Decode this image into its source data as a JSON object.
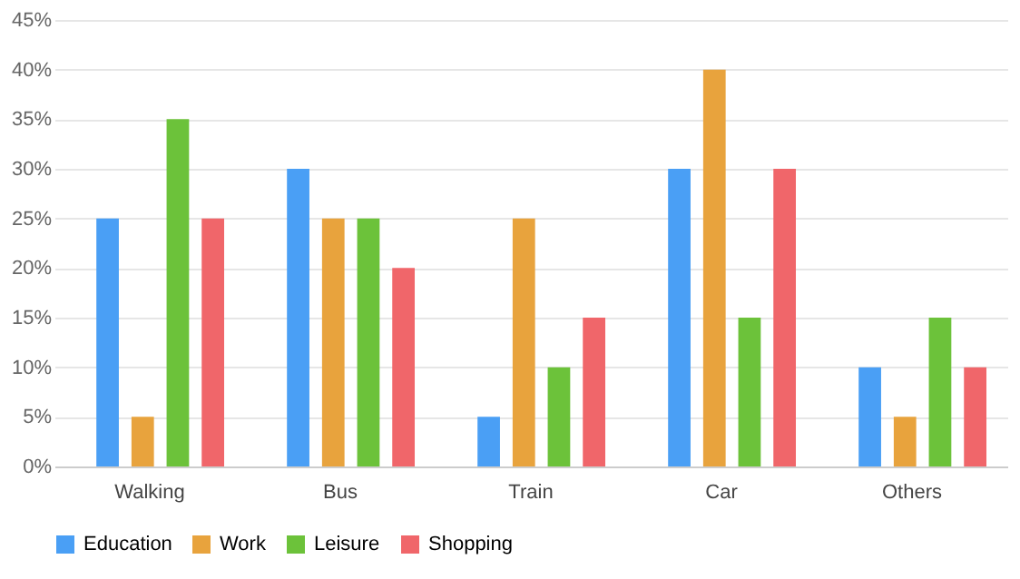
{
  "chart_data": {
    "type": "bar",
    "categories": [
      "Walking",
      "Bus",
      "Train",
      "Car",
      "Others"
    ],
    "series": [
      {
        "name": "Education",
        "color": "#4a9ff5",
        "values": [
          25,
          30,
          5,
          30,
          10
        ]
      },
      {
        "name": "Work",
        "color": "#e8a33d",
        "values": [
          5,
          25,
          25,
          40,
          5
        ]
      },
      {
        "name": "Leisure",
        "color": "#6cc23a",
        "values": [
          35,
          25,
          10,
          15,
          15
        ]
      },
      {
        "name": "Shopping",
        "color": "#f0666a",
        "values": [
          25,
          20,
          15,
          30,
          10
        ]
      }
    ],
    "ylim": [
      0,
      45
    ],
    "yticks": [
      {
        "value": 0,
        "label": "0%"
      },
      {
        "value": 5,
        "label": "5%"
      },
      {
        "value": 10,
        "label": "10%"
      },
      {
        "value": 15,
        "label": "15%"
      },
      {
        "value": 20,
        "label": "20%"
      },
      {
        "value": 25,
        "label": "25%"
      },
      {
        "value": 30,
        "label": "30%"
      },
      {
        "value": 35,
        "label": "35%"
      },
      {
        "value": 40,
        "label": "40%"
      },
      {
        "value": 45,
        "label": "45%"
      }
    ],
    "grid": "y",
    "legend": "bottom"
  }
}
